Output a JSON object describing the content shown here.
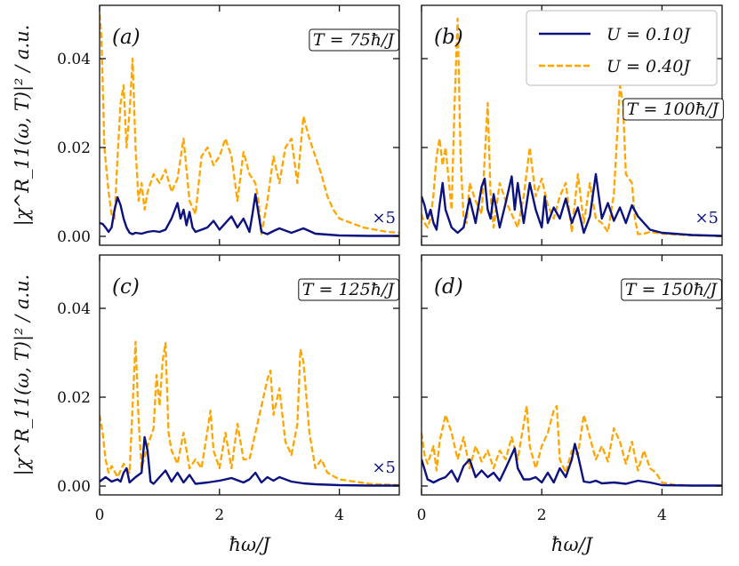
{
  "chart_data": {
    "type": "line",
    "xlabel": "ħω/J",
    "ylabel": "|χ^R_11(ω, T)|² / a.u.",
    "xlim": [
      0,
      5
    ],
    "ylim": [
      -0.002,
      0.052
    ],
    "x_ticks": [
      0,
      2,
      4
    ],
    "x_tick_labels": [
      "0",
      "2",
      "4"
    ],
    "y_ticks": [
      0,
      0.02,
      0.04
    ],
    "y_tick_labels": [
      "0.00",
      "0.02",
      "0.04"
    ],
    "legend": {
      "placement": "top-right of panel (b)",
      "entries": [
        {
          "label": "U = 0.10J",
          "color": "#0b1280",
          "style": "solid"
        },
        {
          "label": "U = 0.40J",
          "color": "#ffa500",
          "style": "dashed"
        }
      ]
    },
    "colors": {
      "series_a": "#0b1280",
      "series_b": "#ffa500"
    },
    "panels": [
      {
        "letter": "(a)",
        "temperature": "T = 75ħ/J",
        "scale_note": "×5",
        "series": [
          {
            "name": "U = 0.10J",
            "x": [
              0,
              0.05,
              0.1,
              0.15,
              0.2,
              0.25,
              0.3,
              0.35,
              0.4,
              0.45,
              0.5,
              0.55,
              0.6,
              0.7,
              0.8,
              0.9,
              1.0,
              1.1,
              1.2,
              1.3,
              1.35,
              1.4,
              1.45,
              1.5,
              1.55,
              1.6,
              1.7,
              1.8,
              1.9,
              2.0,
              2.1,
              2.2,
              2.3,
              2.4,
              2.5,
              2.55,
              2.6,
              2.7,
              2.8,
              2.9,
              3.0,
              3.2,
              3.4,
              3.6,
              3.8,
              4.0,
              4.5,
              5.0
            ],
            "y": [
              0.003,
              0.0028,
              0.002,
              0.001,
              0.002,
              0.006,
              0.0088,
              0.007,
              0.004,
              0.002,
              0.0008,
              0.0005,
              0.0008,
              0.0006,
              0.001,
              0.0012,
              0.001,
              0.0015,
              0.004,
              0.0075,
              0.004,
              0.006,
              0.0025,
              0.0055,
              0.002,
              0.001,
              0.0015,
              0.002,
              0.0035,
              0.0015,
              0.003,
              0.0045,
              0.002,
              0.004,
              0.001,
              0.005,
              0.0095,
              0.001,
              0.0005,
              0.0012,
              0.0018,
              0.0008,
              0.0018,
              0.0006,
              0.0004,
              0.0002,
              0.0001,
              0.0001
            ]
          },
          {
            "name": "U = 0.40J",
            "x": [
              0,
              0.03,
              0.08,
              0.15,
              0.2,
              0.25,
              0.3,
              0.35,
              0.4,
              0.45,
              0.5,
              0.55,
              0.6,
              0.65,
              0.7,
              0.75,
              0.8,
              0.9,
              1.0,
              1.1,
              1.2,
              1.3,
              1.4,
              1.5,
              1.6,
              1.7,
              1.8,
              1.9,
              2.0,
              2.1,
              2.2,
              2.3,
              2.4,
              2.5,
              2.6,
              2.65,
              2.7,
              2.8,
              2.9,
              3.0,
              3.1,
              3.2,
              3.3,
              3.4,
              3.5,
              3.6,
              3.7,
              3.8,
              3.9,
              4.0,
              4.2,
              4.4,
              4.6,
              4.8,
              5.0
            ],
            "y": [
              0.05,
              0.045,
              0.02,
              0.01,
              0.005,
              0.004,
              0.018,
              0.03,
              0.034,
              0.02,
              0.028,
              0.04,
              0.02,
              0.008,
              0.012,
              0.006,
              0.01,
              0.014,
              0.012,
              0.015,
              0.01,
              0.013,
              0.022,
              0.008,
              0.005,
              0.018,
              0.02,
              0.016,
              0.018,
              0.022,
              0.018,
              0.008,
              0.019,
              0.014,
              0.012,
              0.008,
              0.0005,
              0.008,
              0.018,
              0.012,
              0.02,
              0.022,
              0.012,
              0.027,
              0.022,
              0.018,
              0.014,
              0.009,
              0.006,
              0.004,
              0.003,
              0.002,
              0.0015,
              0.001,
              0.0008
            ]
          }
        ]
      },
      {
        "letter": "(b)",
        "temperature": "T = 100ħ/J",
        "scale_note": "×5",
        "series": [
          {
            "name": "U = 0.10J",
            "x": [
              0,
              0.05,
              0.1,
              0.15,
              0.2,
              0.25,
              0.3,
              0.35,
              0.4,
              0.5,
              0.6,
              0.7,
              0.8,
              0.9,
              1.0,
              1.05,
              1.1,
              1.15,
              1.2,
              1.3,
              1.4,
              1.5,
              1.55,
              1.6,
              1.7,
              1.8,
              1.9,
              2.0,
              2.05,
              2.1,
              2.2,
              2.3,
              2.4,
              2.5,
              2.6,
              2.7,
              2.8,
              2.9,
              3.0,
              3.1,
              3.2,
              3.3,
              3.4,
              3.5,
              3.6,
              3.8,
              4.0,
              4.5,
              5.0
            ],
            "y": [
              0.009,
              0.007,
              0.004,
              0.006,
              0.003,
              0.0015,
              0.007,
              0.012,
              0.006,
              0.002,
              0.0008,
              0.002,
              0.0085,
              0.003,
              0.0112,
              0.013,
              0.006,
              0.004,
              0.0095,
              0.002,
              0.0075,
              0.0135,
              0.006,
              0.012,
              0.003,
              0.012,
              0.006,
              0.002,
              0.009,
              0.003,
              0.0065,
              0.004,
              0.0085,
              0.003,
              0.0065,
              0.0008,
              0.0045,
              0.014,
              0.004,
              0.0075,
              0.0035,
              0.0065,
              0.003,
              0.007,
              0.0045,
              0.0015,
              0.0008,
              0.0003,
              0.0001
            ]
          },
          {
            "name": "U = 0.40J",
            "x": [
              0,
              0.05,
              0.1,
              0.15,
              0.2,
              0.25,
              0.3,
              0.35,
              0.4,
              0.5,
              0.55,
              0.6,
              0.65,
              0.7,
              0.75,
              0.8,
              0.9,
              1.0,
              1.1,
              1.15,
              1.2,
              1.3,
              1.4,
              1.5,
              1.6,
              1.7,
              1.8,
              1.9,
              2.0,
              2.1,
              2.2,
              2.3,
              2.4,
              2.5,
              2.6,
              2.7,
              2.8,
              2.9,
              3.0,
              3.1,
              3.2,
              3.3,
              3.35,
              3.4,
              3.5,
              3.55,
              3.6,
              3.7,
              3.8,
              4.0,
              4.5,
              5.0
            ],
            "y": [
              0.005,
              0.003,
              0.002,
              0.004,
              0.0095,
              0.018,
              0.022,
              0.016,
              0.02,
              0.006,
              0.03,
              0.049,
              0.018,
              0.004,
              0.003,
              0.012,
              0.008,
              0.005,
              0.03,
              0.009,
              0.002,
              0.012,
              0.008,
              0.005,
              0.002,
              0.009,
              0.02,
              0.009,
              0.013,
              0.007,
              0.004,
              0.009,
              0.012,
              0.001,
              0.014,
              0.003,
              0.012,
              0.004,
              0.003,
              0.001,
              0.0095,
              0.034,
              0.03,
              0.014,
              0.012,
              0.004,
              0.0005,
              0.0006,
              0.001,
              0.0006,
              0.0002,
              0.0001
            ]
          }
        ]
      },
      {
        "letter": "(c)",
        "temperature": "T = 125ħ/J",
        "scale_note": "×5",
        "series": [
          {
            "name": "U = 0.10J",
            "x": [
              0,
              0.1,
              0.2,
              0.3,
              0.35,
              0.4,
              0.45,
              0.5,
              0.6,
              0.7,
              0.75,
              0.8,
              0.85,
              0.9,
              1.0,
              1.1,
              1.2,
              1.3,
              1.4,
              1.5,
              1.6,
              1.8,
              2.0,
              2.2,
              2.4,
              2.5,
              2.6,
              2.7,
              2.8,
              2.9,
              3.0,
              3.2,
              3.4,
              3.6,
              3.8,
              4.0,
              4.5,
              5.0
            ],
            "y": [
              0.001,
              0.002,
              0.001,
              0.0015,
              0.001,
              0.003,
              0.004,
              0.0008,
              0.002,
              0.003,
              0.011,
              0.008,
              0.001,
              0.0005,
              0.002,
              0.0035,
              0.001,
              0.003,
              0.0008,
              0.0025,
              0.0005,
              0.0008,
              0.0012,
              0.0018,
              0.0008,
              0.0015,
              0.003,
              0.0008,
              0.002,
              0.0012,
              0.002,
              0.001,
              0.0006,
              0.0004,
              0.0003,
              0.0002,
              0.0001,
              0.0001
            ]
          },
          {
            "name": "U = 0.40J",
            "x": [
              0,
              0.05,
              0.1,
              0.15,
              0.2,
              0.3,
              0.4,
              0.5,
              0.55,
              0.6,
              0.65,
              0.7,
              0.8,
              0.9,
              0.95,
              1.0,
              1.05,
              1.1,
              1.15,
              1.2,
              1.3,
              1.4,
              1.5,
              1.6,
              1.7,
              1.8,
              1.85,
              1.9,
              2.0,
              2.1,
              2.2,
              2.3,
              2.4,
              2.5,
              2.6,
              2.7,
              2.8,
              2.85,
              2.9,
              3.0,
              3.1,
              3.2,
              3.3,
              3.35,
              3.4,
              3.5,
              3.6,
              3.7,
              3.8,
              4.0,
              4.5,
              5.0
            ],
            "y": [
              0.016,
              0.012,
              0.006,
              0.003,
              0.0045,
              0.002,
              0.005,
              0.003,
              0.018,
              0.0325,
              0.015,
              0.004,
              0.009,
              0.013,
              0.025,
              0.018,
              0.028,
              0.0322,
              0.012,
              0.008,
              0.005,
              0.012,
              0.004,
              0.006,
              0.004,
              0.0125,
              0.017,
              0.008,
              0.004,
              0.012,
              0.004,
              0.014,
              0.006,
              0.006,
              0.012,
              0.018,
              0.024,
              0.026,
              0.016,
              0.022,
              0.01,
              0.007,
              0.014,
              0.0308,
              0.028,
              0.012,
              0.004,
              0.006,
              0.003,
              0.0015,
              0.0005,
              0.0002
            ]
          }
        ]
      },
      {
        "letter": "(d)",
        "temperature": "T = 150ħ/J",
        "scale_note": "",
        "series": [
          {
            "name": "U = 0.10J",
            "x": [
              0,
              0.1,
              0.2,
              0.3,
              0.4,
              0.5,
              0.6,
              0.7,
              0.8,
              0.9,
              1.0,
              1.1,
              1.2,
              1.3,
              1.4,
              1.5,
              1.55,
              1.6,
              1.7,
              1.8,
              1.9,
              2.0,
              2.1,
              2.2,
              2.3,
              2.4,
              2.5,
              2.55,
              2.6,
              2.7,
              2.8,
              2.9,
              3.0,
              3.2,
              3.4,
              3.6,
              3.8,
              4.0,
              4.5,
              5.0
            ],
            "y": [
              0.006,
              0.0015,
              0.0008,
              0.0015,
              0.002,
              0.0035,
              0.001,
              0.0045,
              0.006,
              0.002,
              0.0035,
              0.002,
              0.003,
              0.0012,
              0.004,
              0.007,
              0.0085,
              0.004,
              0.0015,
              0.0015,
              0.002,
              0.0008,
              0.003,
              0.0008,
              0.004,
              0.002,
              0.006,
              0.0095,
              0.007,
              0.001,
              0.0008,
              0.0012,
              0.0006,
              0.0008,
              0.0005,
              0.0012,
              0.0008,
              0.0002,
              0.0001,
              0.0001
            ]
          },
          {
            "name": "U = 0.40J",
            "x": [
              0,
              0.05,
              0.1,
              0.2,
              0.25,
              0.3,
              0.4,
              0.5,
              0.6,
              0.7,
              0.8,
              0.9,
              1.0,
              1.1,
              1.2,
              1.3,
              1.4,
              1.5,
              1.6,
              1.7,
              1.75,
              1.8,
              1.9,
              2.0,
              2.1,
              2.2,
              2.25,
              2.3,
              2.4,
              2.5,
              2.6,
              2.7,
              2.8,
              2.9,
              3.0,
              3.1,
              3.2,
              3.3,
              3.4,
              3.5,
              3.6,
              3.7,
              3.8,
              3.9,
              4.0,
              4.2,
              4.5,
              5.0
            ],
            "y": [
              0.012,
              0.007,
              0.005,
              0.009,
              0.0035,
              0.01,
              0.016,
              0.012,
              0.006,
              0.011,
              0.004,
              0.009,
              0.0055,
              0.008,
              0.004,
              0.008,
              0.006,
              0.011,
              0.006,
              0.014,
              0.018,
              0.009,
              0.004,
              0.009,
              0.012,
              0.017,
              0.018,
              0.006,
              0.003,
              0.008,
              0.007,
              0.016,
              0.011,
              0.006,
              0.009,
              0.0055,
              0.013,
              0.01,
              0.005,
              0.01,
              0.0035,
              0.008,
              0.004,
              0.003,
              0.0008,
              0.0003,
              0.0001,
              0.0001
            ]
          }
        ]
      }
    ]
  }
}
